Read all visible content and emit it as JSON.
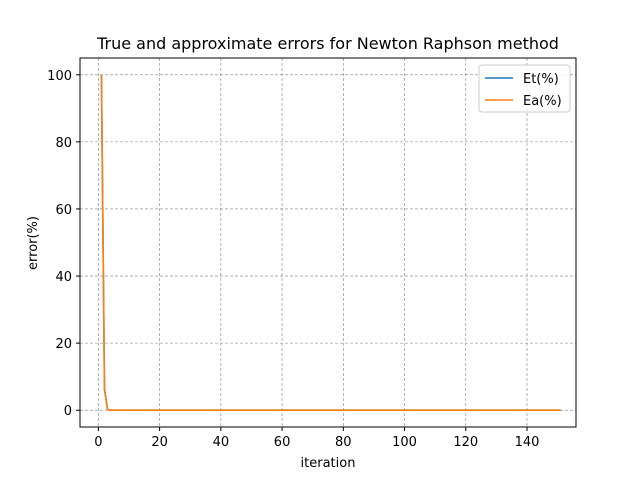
{
  "chart_data": {
    "type": "line",
    "title": "True and approximate errors for Newton Raphson method",
    "xlabel": "iteration",
    "ylabel": "error(%)",
    "xlim": [
      -6,
      156
    ],
    "ylim": [
      -5,
      105
    ],
    "xticks": [
      0,
      20,
      40,
      60,
      80,
      100,
      120,
      140
    ],
    "yticks": [
      0,
      20,
      40,
      60,
      80,
      100
    ],
    "grid": true,
    "legend_position": "top-right",
    "series": [
      {
        "name": "Et(%)",
        "color": "#1f77b4",
        "x": [
          1,
          2,
          3,
          4,
          5,
          10,
          20,
          50,
          100,
          151
        ],
        "y": [
          100,
          6.3,
          0.2,
          0,
          0,
          0,
          0,
          0,
          0,
          0
        ]
      },
      {
        "name": "Ea(%)",
        "color": "#ff7f0e",
        "x": [
          1,
          2,
          3,
          4,
          5,
          10,
          20,
          50,
          100,
          151
        ],
        "y": [
          100,
          6.3,
          0.2,
          0,
          0,
          0,
          0,
          0,
          0,
          0
        ]
      }
    ]
  }
}
